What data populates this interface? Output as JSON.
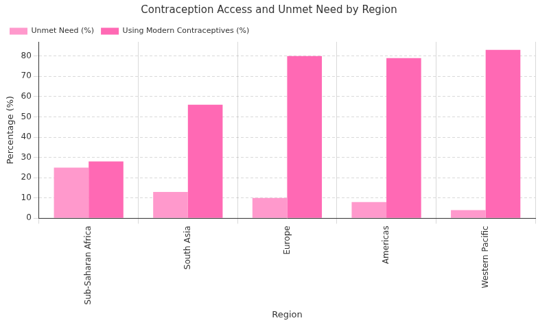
{
  "chart_data": {
    "type": "bar",
    "title": "Contraception Access and Unmet Need by Region",
    "x_label": "Region",
    "y_label": "Percentage (%)",
    "categories": [
      "Sub-Saharan Africa",
      "South Asia",
      "Europe",
      "Americas",
      "Western Pacific"
    ],
    "series": [
      {
        "name": "Unmet Need (%)",
        "color": "#ff99cc",
        "values": [
          25,
          13,
          10,
          8,
          4
        ]
      },
      {
        "name": "Using Modern Contraceptives (%)",
        "color": "#ff69b4",
        "values": [
          28,
          56,
          80,
          79,
          83
        ]
      }
    ],
    "ylim": [
      0,
      87
    ],
    "yticks": [
      0,
      10,
      20,
      30,
      40,
      50,
      60,
      70,
      80
    ],
    "grid": true,
    "legend": "upper left"
  }
}
